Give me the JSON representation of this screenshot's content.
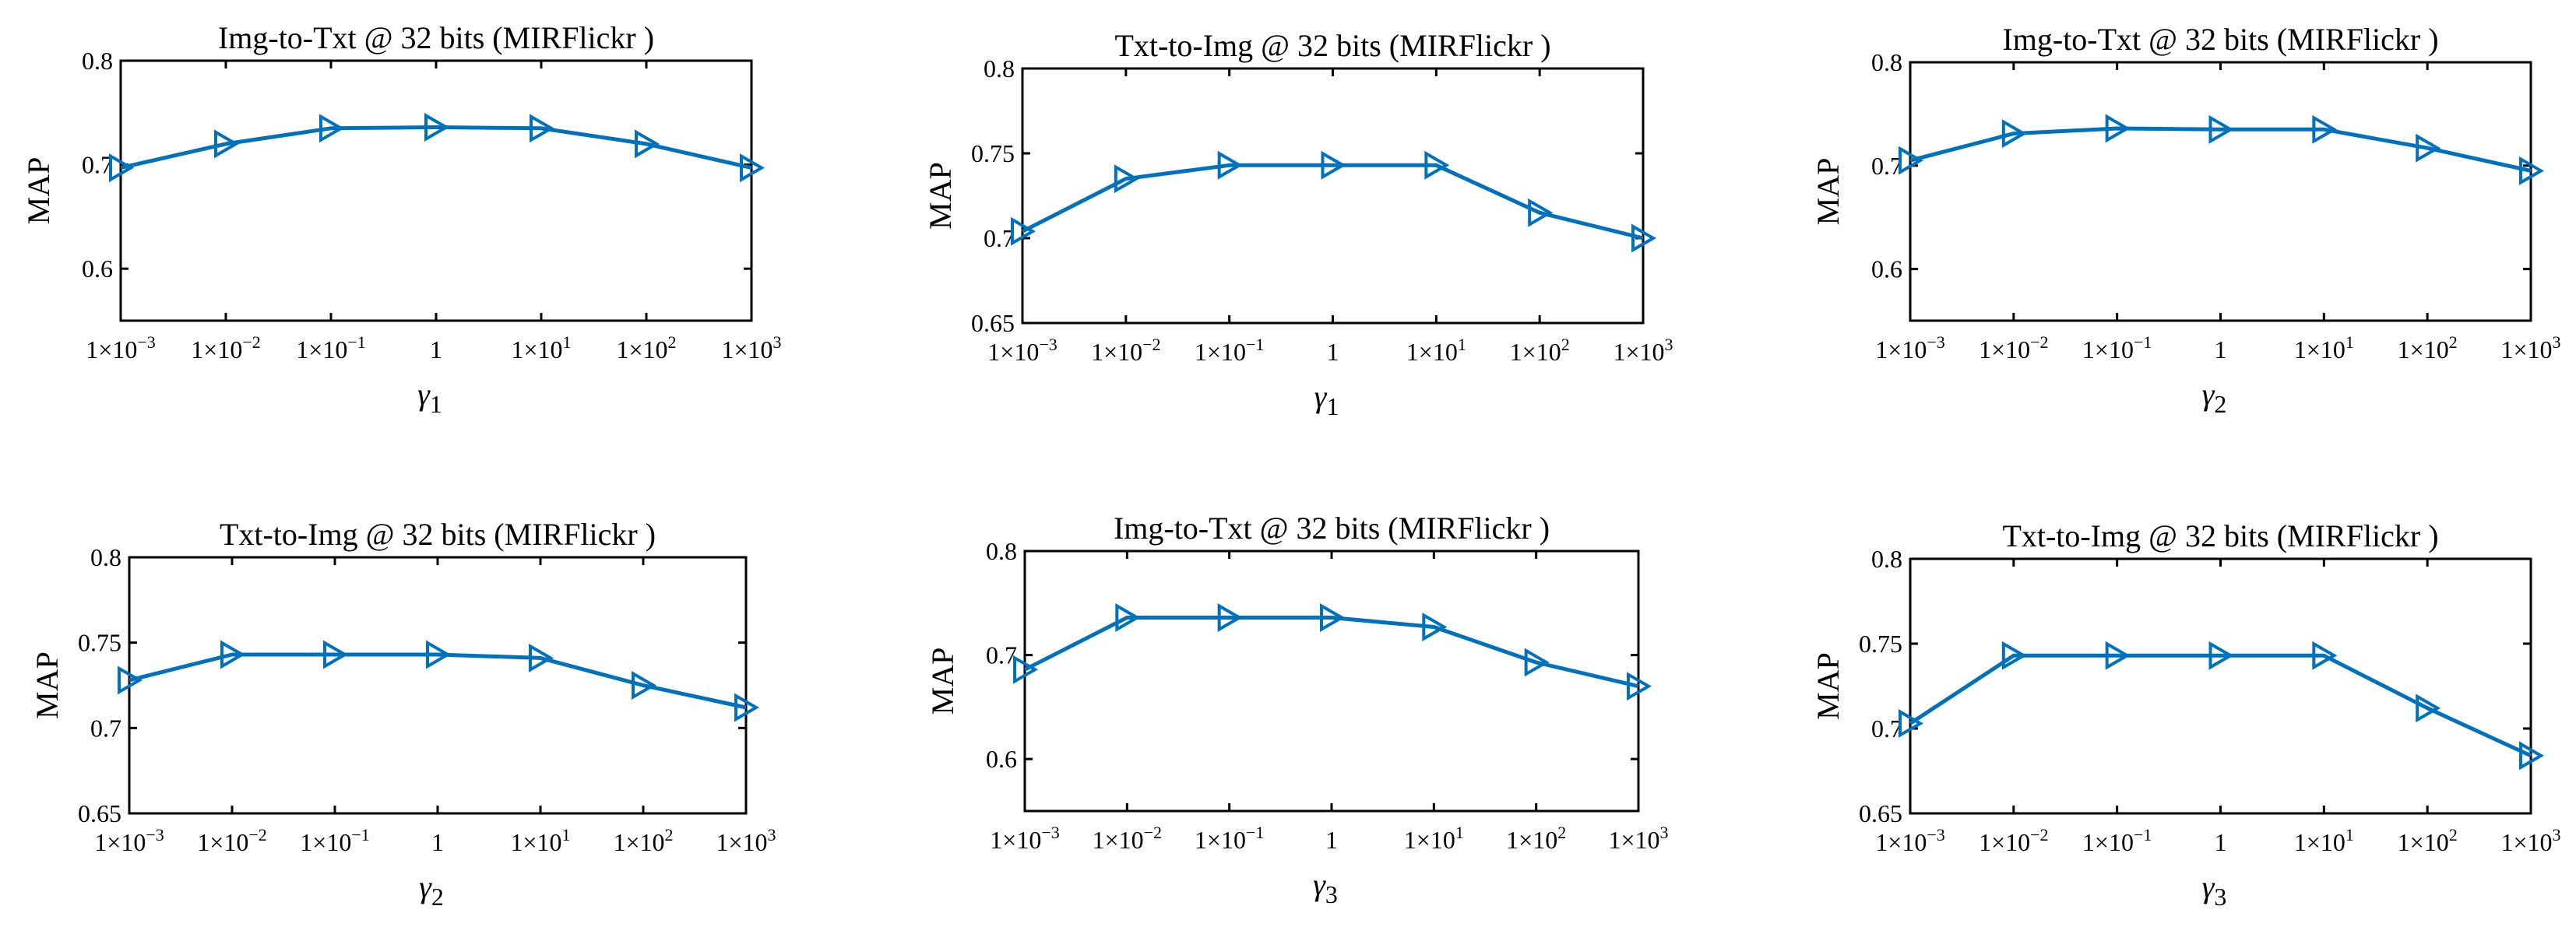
{
  "chart_data": [
    {
      "type": "line",
      "title": "Img-to-Txt @ 32 bits (MIRFlickr )",
      "ylabel": "MAP",
      "xlabel": "γ",
      "xlabel_sub": "1",
      "categories": [
        "1×10^-3",
        "1×10^-2",
        "1×10^-1",
        "1",
        "1×10^1",
        "1×10^2",
        "1×10^3"
      ],
      "x_tick_labels": [
        {
          "base": "1×10",
          "exp": "-3"
        },
        {
          "base": "1×10",
          "exp": "-2"
        },
        {
          "base": "1×10",
          "exp": "-1"
        },
        {
          "base": "1",
          "exp": ""
        },
        {
          "base": "1×10",
          "exp": "1"
        },
        {
          "base": "1×10",
          "exp": "2"
        },
        {
          "base": "1×10",
          "exp": "3"
        }
      ],
      "ylim": [
        0.55,
        0.8
      ],
      "yticks": [
        0.6,
        0.7,
        0.8
      ],
      "ytick_labels": [
        "0.6",
        "0.7",
        "0.8"
      ],
      "series": [
        {
          "name": "MAP",
          "values": [
            0.697,
            0.72,
            0.735,
            0.736,
            0.735,
            0.72,
            0.697
          ]
        }
      ],
      "grid": false
    },
    {
      "type": "line",
      "title": "Txt-to-Img @ 32 bits (MIRFlickr )",
      "ylabel": "MAP",
      "xlabel": "γ",
      "xlabel_sub": "1",
      "categories": [
        "1×10^-3",
        "1×10^-2",
        "1×10^-1",
        "1",
        "1×10^1",
        "1×10^2",
        "1×10^3"
      ],
      "x_tick_labels": [
        {
          "base": "1×10",
          "exp": "-3"
        },
        {
          "base": "1×10",
          "exp": "-2"
        },
        {
          "base": "1×10",
          "exp": "-1"
        },
        {
          "base": "1",
          "exp": ""
        },
        {
          "base": "1×10",
          "exp": "1"
        },
        {
          "base": "1×10",
          "exp": "2"
        },
        {
          "base": "1×10",
          "exp": "3"
        }
      ],
      "ylim": [
        0.65,
        0.8
      ],
      "yticks": [
        0.65,
        0.7,
        0.75,
        0.8
      ],
      "ytick_labels": [
        "0.65",
        "0.7",
        "0.75",
        "0.8"
      ],
      "series": [
        {
          "name": "MAP",
          "values": [
            0.704,
            0.735,
            0.743,
            0.743,
            0.743,
            0.715,
            0.7
          ]
        }
      ],
      "grid": false
    },
    {
      "type": "line",
      "title": "Img-to-Txt @ 32 bits (MIRFlickr )",
      "ylabel": "MAP",
      "xlabel": "γ",
      "xlabel_sub": "2",
      "categories": [
        "1×10^-3",
        "1×10^-2",
        "1×10^-1",
        "1",
        "1×10^1",
        "1×10^2",
        "1×10^3"
      ],
      "x_tick_labels": [
        {
          "base": "1×10",
          "exp": "-3"
        },
        {
          "base": "1×10",
          "exp": "-2"
        },
        {
          "base": "1×10",
          "exp": "-1"
        },
        {
          "base": "1",
          "exp": ""
        },
        {
          "base": "1×10",
          "exp": "1"
        },
        {
          "base": "1×10",
          "exp": "2"
        },
        {
          "base": "1×10",
          "exp": "3"
        }
      ],
      "ylim": [
        0.55,
        0.8
      ],
      "yticks": [
        0.6,
        0.7,
        0.8
      ],
      "ytick_labels": [
        "0.6",
        "0.7",
        "0.8"
      ],
      "series": [
        {
          "name": "MAP",
          "values": [
            0.705,
            0.731,
            0.736,
            0.735,
            0.735,
            0.717,
            0.695
          ]
        }
      ],
      "grid": false
    },
    {
      "type": "line",
      "title": "Txt-to-Img @ 32 bits (MIRFlickr )",
      "ylabel": "MAP",
      "xlabel": "γ",
      "xlabel_sub": "2",
      "categories": [
        "1×10^-3",
        "1×10^-2",
        "1×10^-1",
        "1",
        "1×10^1",
        "1×10^2",
        "1×10^3"
      ],
      "x_tick_labels": [
        {
          "base": "1×10",
          "exp": "-3"
        },
        {
          "base": "1×10",
          "exp": "-2"
        },
        {
          "base": "1×10",
          "exp": "-1"
        },
        {
          "base": "1",
          "exp": ""
        },
        {
          "base": "1×10",
          "exp": "1"
        },
        {
          "base": "1×10",
          "exp": "2"
        },
        {
          "base": "1×10",
          "exp": "3"
        }
      ],
      "ylim": [
        0.65,
        0.8
      ],
      "yticks": [
        0.65,
        0.7,
        0.75,
        0.8
      ],
      "ytick_labels": [
        "0.65",
        "0.7",
        "0.75",
        "0.8"
      ],
      "series": [
        {
          "name": "MAP",
          "values": [
            0.728,
            0.743,
            0.743,
            0.743,
            0.741,
            0.725,
            0.712
          ]
        }
      ],
      "grid": false
    },
    {
      "type": "line",
      "title": "Img-to-Txt @ 32 bits (MIRFlickr )",
      "ylabel": "MAP",
      "xlabel": "γ",
      "xlabel_sub": "3",
      "categories": [
        "1×10^-3",
        "1×10^-2",
        "1×10^-1",
        "1",
        "1×10^1",
        "1×10^2",
        "1×10^3"
      ],
      "x_tick_labels": [
        {
          "base": "1×10",
          "exp": "-3"
        },
        {
          "base": "1×10",
          "exp": "-2"
        },
        {
          "base": "1×10",
          "exp": "-1"
        },
        {
          "base": "1",
          "exp": ""
        },
        {
          "base": "1×10",
          "exp": "1"
        },
        {
          "base": "1×10",
          "exp": "2"
        },
        {
          "base": "1×10",
          "exp": "3"
        }
      ],
      "ylim": [
        0.55,
        0.8
      ],
      "yticks": [
        0.6,
        0.7,
        0.8
      ],
      "ytick_labels": [
        "0.6",
        "0.7",
        "0.8"
      ],
      "series": [
        {
          "name": "MAP",
          "values": [
            0.686,
            0.736,
            0.736,
            0.736,
            0.727,
            0.693,
            0.67
          ]
        }
      ],
      "grid": false
    },
    {
      "type": "line",
      "title": "Txt-to-Img @ 32 bits (MIRFlickr )",
      "ylabel": "MAP",
      "xlabel": "γ",
      "xlabel_sub": "3",
      "categories": [
        "1×10^-3",
        "1×10^-2",
        "1×10^-1",
        "1",
        "1×10^1",
        "1×10^2",
        "1×10^3"
      ],
      "x_tick_labels": [
        {
          "base": "1×10",
          "exp": "-3"
        },
        {
          "base": "1×10",
          "exp": "-2"
        },
        {
          "base": "1×10",
          "exp": "-1"
        },
        {
          "base": "1",
          "exp": ""
        },
        {
          "base": "1×10",
          "exp": "1"
        },
        {
          "base": "1×10",
          "exp": "2"
        },
        {
          "base": "1×10",
          "exp": "3"
        }
      ],
      "ylim": [
        0.65,
        0.8
      ],
      "yticks": [
        0.65,
        0.7,
        0.75,
        0.8
      ],
      "ytick_labels": [
        "0.65",
        "0.7",
        "0.75",
        "0.8"
      ],
      "series": [
        {
          "name": "MAP",
          "values": [
            0.703,
            0.743,
            0.743,
            0.743,
            0.743,
            0.712,
            0.684
          ]
        }
      ],
      "grid": false
    }
  ],
  "colors": {
    "series": "#0072BD",
    "axes": "#000000"
  },
  "marker": "right-triangle"
}
